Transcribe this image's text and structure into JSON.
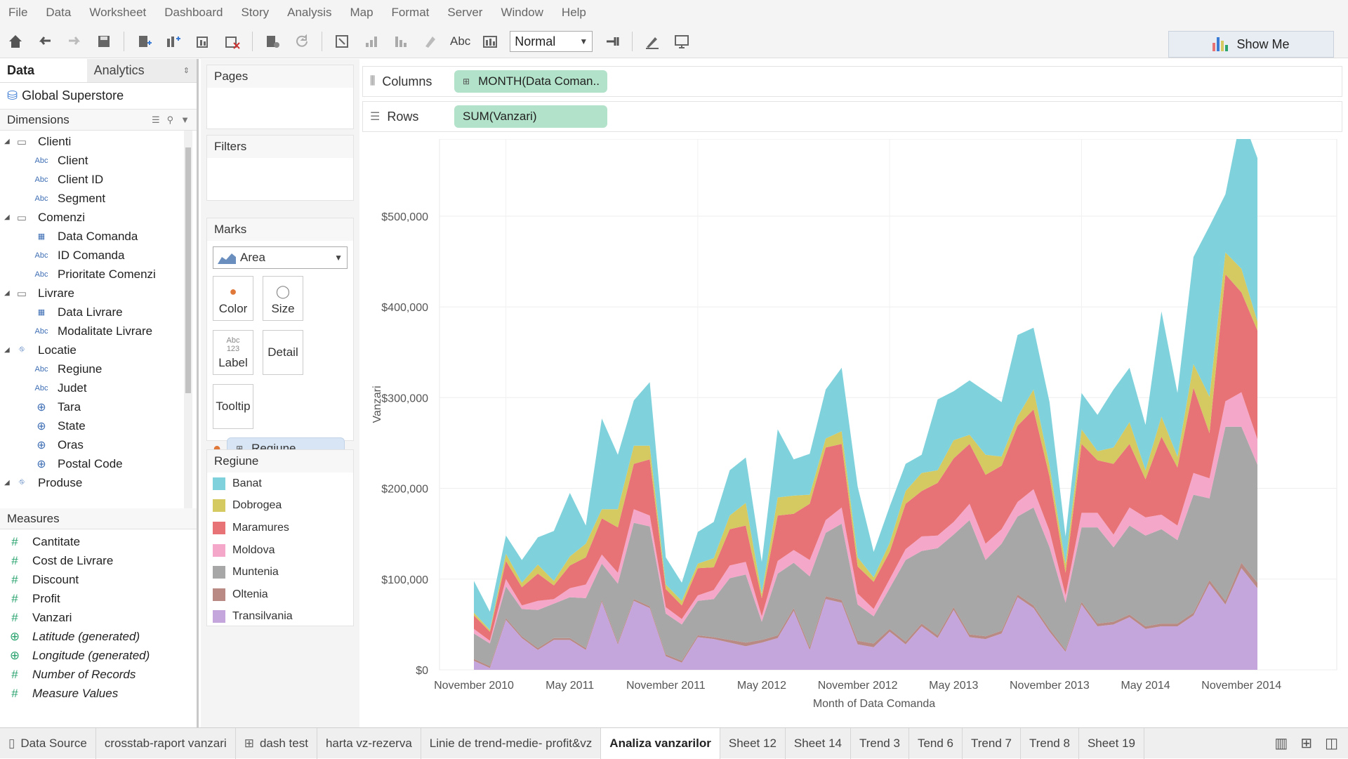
{
  "menu": [
    "File",
    "Data",
    "Worksheet",
    "Dashboard",
    "Story",
    "Analysis",
    "Map",
    "Format",
    "Server",
    "Window",
    "Help"
  ],
  "toolbar": {
    "fit": "Normal",
    "abc": "Abc",
    "show_me": "Show Me"
  },
  "datapane": {
    "tab_data": "Data",
    "tab_analytics": "Analytics",
    "datasource": "Global Superstore",
    "dimensions_label": "Dimensions",
    "dimensions": [
      {
        "label": "Clienti",
        "type": "folder"
      },
      {
        "label": "Client",
        "type": "abc"
      },
      {
        "label": "Client ID",
        "type": "abc"
      },
      {
        "label": "Segment",
        "type": "abc"
      },
      {
        "label": "Comenzi",
        "type": "folder"
      },
      {
        "label": "Data Comanda",
        "type": "date"
      },
      {
        "label": "ID Comanda",
        "type": "abc"
      },
      {
        "label": "Prioritate Comenzi",
        "type": "abc"
      },
      {
        "label": "Livrare",
        "type": "folder"
      },
      {
        "label": "Data Livrare",
        "type": "date"
      },
      {
        "label": "Modalitate Livrare",
        "type": "abc"
      },
      {
        "label": "Locatie",
        "type": "hier"
      },
      {
        "label": "Regiune",
        "type": "abc"
      },
      {
        "label": "Judet",
        "type": "abc"
      },
      {
        "label": "Tara",
        "type": "geo"
      },
      {
        "label": "State",
        "type": "geo"
      },
      {
        "label": "Oras",
        "type": "geo"
      },
      {
        "label": "Postal Code",
        "type": "geo"
      },
      {
        "label": "Produse",
        "type": "hier"
      }
    ],
    "measures_label": "Measures",
    "measures": [
      "Cantitate",
      "Cost de Livrare",
      "Discount",
      "Profit",
      "Vanzari",
      "Latitude (generated)",
      "Longitude (generated)",
      "Number of Records",
      "Measure Values"
    ]
  },
  "cards": {
    "pages": "Pages",
    "filters": "Filters",
    "marks": "Marks",
    "mark_type": "Area",
    "color": "Color",
    "size": "Size",
    "label": "Label",
    "label_icon": "Abc 123",
    "detail": "Detail",
    "tooltip": "Tooltip",
    "color_pill": "Regiune",
    "legend_title": "Regiune"
  },
  "shelves": {
    "columns": "Columns",
    "columns_pill": "MONTH(Data Coman..",
    "rows": "Rows",
    "rows_pill": "SUM(Vanzari)"
  },
  "sheets": [
    "Data Source",
    "crosstab-raport vanzari",
    "dash test",
    "harta vz-rezerva",
    "Linie de trend-medie- profit&vz",
    "Analiza vanzarilor",
    "Sheet 12",
    "Sheet 14",
    "Trend 3",
    "Tend 6",
    "Trend 7",
    "Trend 8",
    "Sheet 19"
  ],
  "active_sheet": "Analiza vanzarilor",
  "chart_data": {
    "type": "area",
    "stacked": true,
    "xlabel": "Month of Data Comanda",
    "ylabel": "Vanzari",
    "x_ticks": [
      "November 2010",
      "May 2011",
      "November 2011",
      "May 2012",
      "November 2012",
      "May 2013",
      "November 2013",
      "May 2014",
      "November 2014"
    ],
    "y_ticks": [
      "$0",
      "$100,000",
      "$200,000",
      "$300,000",
      "$400,000",
      "$500,000"
    ],
    "ylim": [
      0,
      585000
    ],
    "x_start": "2010-11",
    "x_end": "2014-12",
    "legend_position": "left-panel",
    "series": [
      {
        "name": "Transilvania",
        "color": "#c5a6dc",
        "values": [
          10000,
          2000,
          55000,
          35000,
          22000,
          33000,
          33000,
          22000,
          75000,
          28000,
          76000,
          68000,
          15000,
          8000,
          36000,
          34000,
          30000,
          26000,
          30000,
          35000,
          65000,
          22000,
          78000,
          74000,
          28000,
          25000,
          42000,
          28000,
          48000,
          35000,
          66000,
          36000,
          34000,
          40000,
          80000,
          68000,
          42000,
          20000,
          72000,
          48000,
          50000,
          58000,
          45000,
          48000,
          48000,
          60000,
          95000,
          72000,
          112000,
          90000
        ]
      },
      {
        "name": "Oltenia",
        "color": "#b98a83",
        "values": [
          2000,
          2000,
          2000,
          2000,
          2000,
          2000,
          2000,
          2000,
          2000,
          2000,
          2000,
          2000,
          2000,
          2000,
          2000,
          2000,
          3000,
          4000,
          3000,
          3000,
          3000,
          3000,
          3000,
          3000,
          4000,
          4000,
          3000,
          3000,
          3000,
          3000,
          3000,
          3000,
          3000,
          3000,
          3000,
          3000,
          3000,
          2000,
          3000,
          3000,
          3000,
          3000,
          3000,
          3000,
          3000,
          3000,
          4000,
          4000,
          6000,
          6000
        ]
      },
      {
        "name": "Muntenia",
        "color": "#a7a7a7",
        "values": [
          28000,
          25000,
          35000,
          30000,
          42000,
          38000,
          45000,
          55000,
          40000,
          65000,
          84000,
          88000,
          45000,
          40000,
          38000,
          42000,
          68000,
          75000,
          20000,
          68000,
          50000,
          78000,
          70000,
          84000,
          40000,
          30000,
          45000,
          90000,
          80000,
          96000,
          80000,
          126000,
          84000,
          96000,
          86000,
          108000,
          90000,
          52000,
          82000,
          106000,
          82000,
          98000,
          100000,
          104000,
          92000,
          130000,
          90000,
          192000,
          150000,
          130000
        ]
      },
      {
        "name": "Moldova",
        "color": "#f4a7c9",
        "values": [
          5000,
          3000,
          8000,
          4000,
          10000,
          5000,
          10000,
          15000,
          10000,
          12000,
          15000,
          12000,
          7000,
          6000,
          6000,
          10000,
          14000,
          14000,
          6000,
          14000,
          14000,
          18000,
          14000,
          18000,
          12000,
          8000,
          10000,
          12000,
          16000,
          14000,
          14000,
          18000,
          18000,
          16000,
          16000,
          20000,
          18000,
          8000,
          16000,
          16000,
          14000,
          20000,
          20000,
          16000,
          16000,
          24000,
          22000,
          28000,
          38000,
          28000
        ]
      },
      {
        "name": "Maramures",
        "color": "#e87376",
        "values": [
          15000,
          10000,
          20000,
          20000,
          30000,
          15000,
          25000,
          30000,
          40000,
          50000,
          50000,
          62000,
          20000,
          15000,
          30000,
          25000,
          40000,
          40000,
          20000,
          50000,
          40000,
          62000,
          80000,
          70000,
          30000,
          30000,
          30000,
          50000,
          50000,
          58000,
          70000,
          66000,
          76000,
          70000,
          84000,
          88000,
          60000,
          25000,
          76000,
          58000,
          78000,
          70000,
          42000,
          86000,
          64000,
          94000,
          50000,
          140000,
          110000,
          120000
        ]
      },
      {
        "name": "Dobrogea",
        "color": "#d5ca62",
        "values": [
          3000,
          2000,
          8000,
          5000,
          10000,
          5000,
          10000,
          15000,
          10000,
          20000,
          20000,
          15000,
          5000,
          5000,
          5000,
          10000,
          15000,
          25000,
          5000,
          20000,
          20000,
          10000,
          10000,
          14000,
          10000,
          5000,
          10000,
          14000,
          20000,
          14000,
          20000,
          10000,
          22000,
          10000,
          10000,
          22000,
          12000,
          10000,
          16000,
          10000,
          18000,
          24000,
          10000,
          22000,
          12000,
          26000,
          40000,
          24000,
          26000,
          10000
        ]
      },
      {
        "name": "Banat",
        "color": "#7fd2dc",
        "values": [
          35000,
          20000,
          20000,
          25000,
          30000,
          55000,
          70000,
          20000,
          100000,
          60000,
          50000,
          70000,
          30000,
          20000,
          35000,
          40000,
          50000,
          50000,
          35000,
          75000,
          40000,
          45000,
          54000,
          70000,
          78000,
          28000,
          40000,
          30000,
          20000,
          78000,
          54000,
          60000,
          70000,
          60000,
          90000,
          68000,
          70000,
          30000,
          40000,
          40000,
          64000,
          60000,
          50000,
          116000,
          70000,
          118000,
          188000,
          64000,
          170000,
          180000
        ]
      }
    ]
  }
}
